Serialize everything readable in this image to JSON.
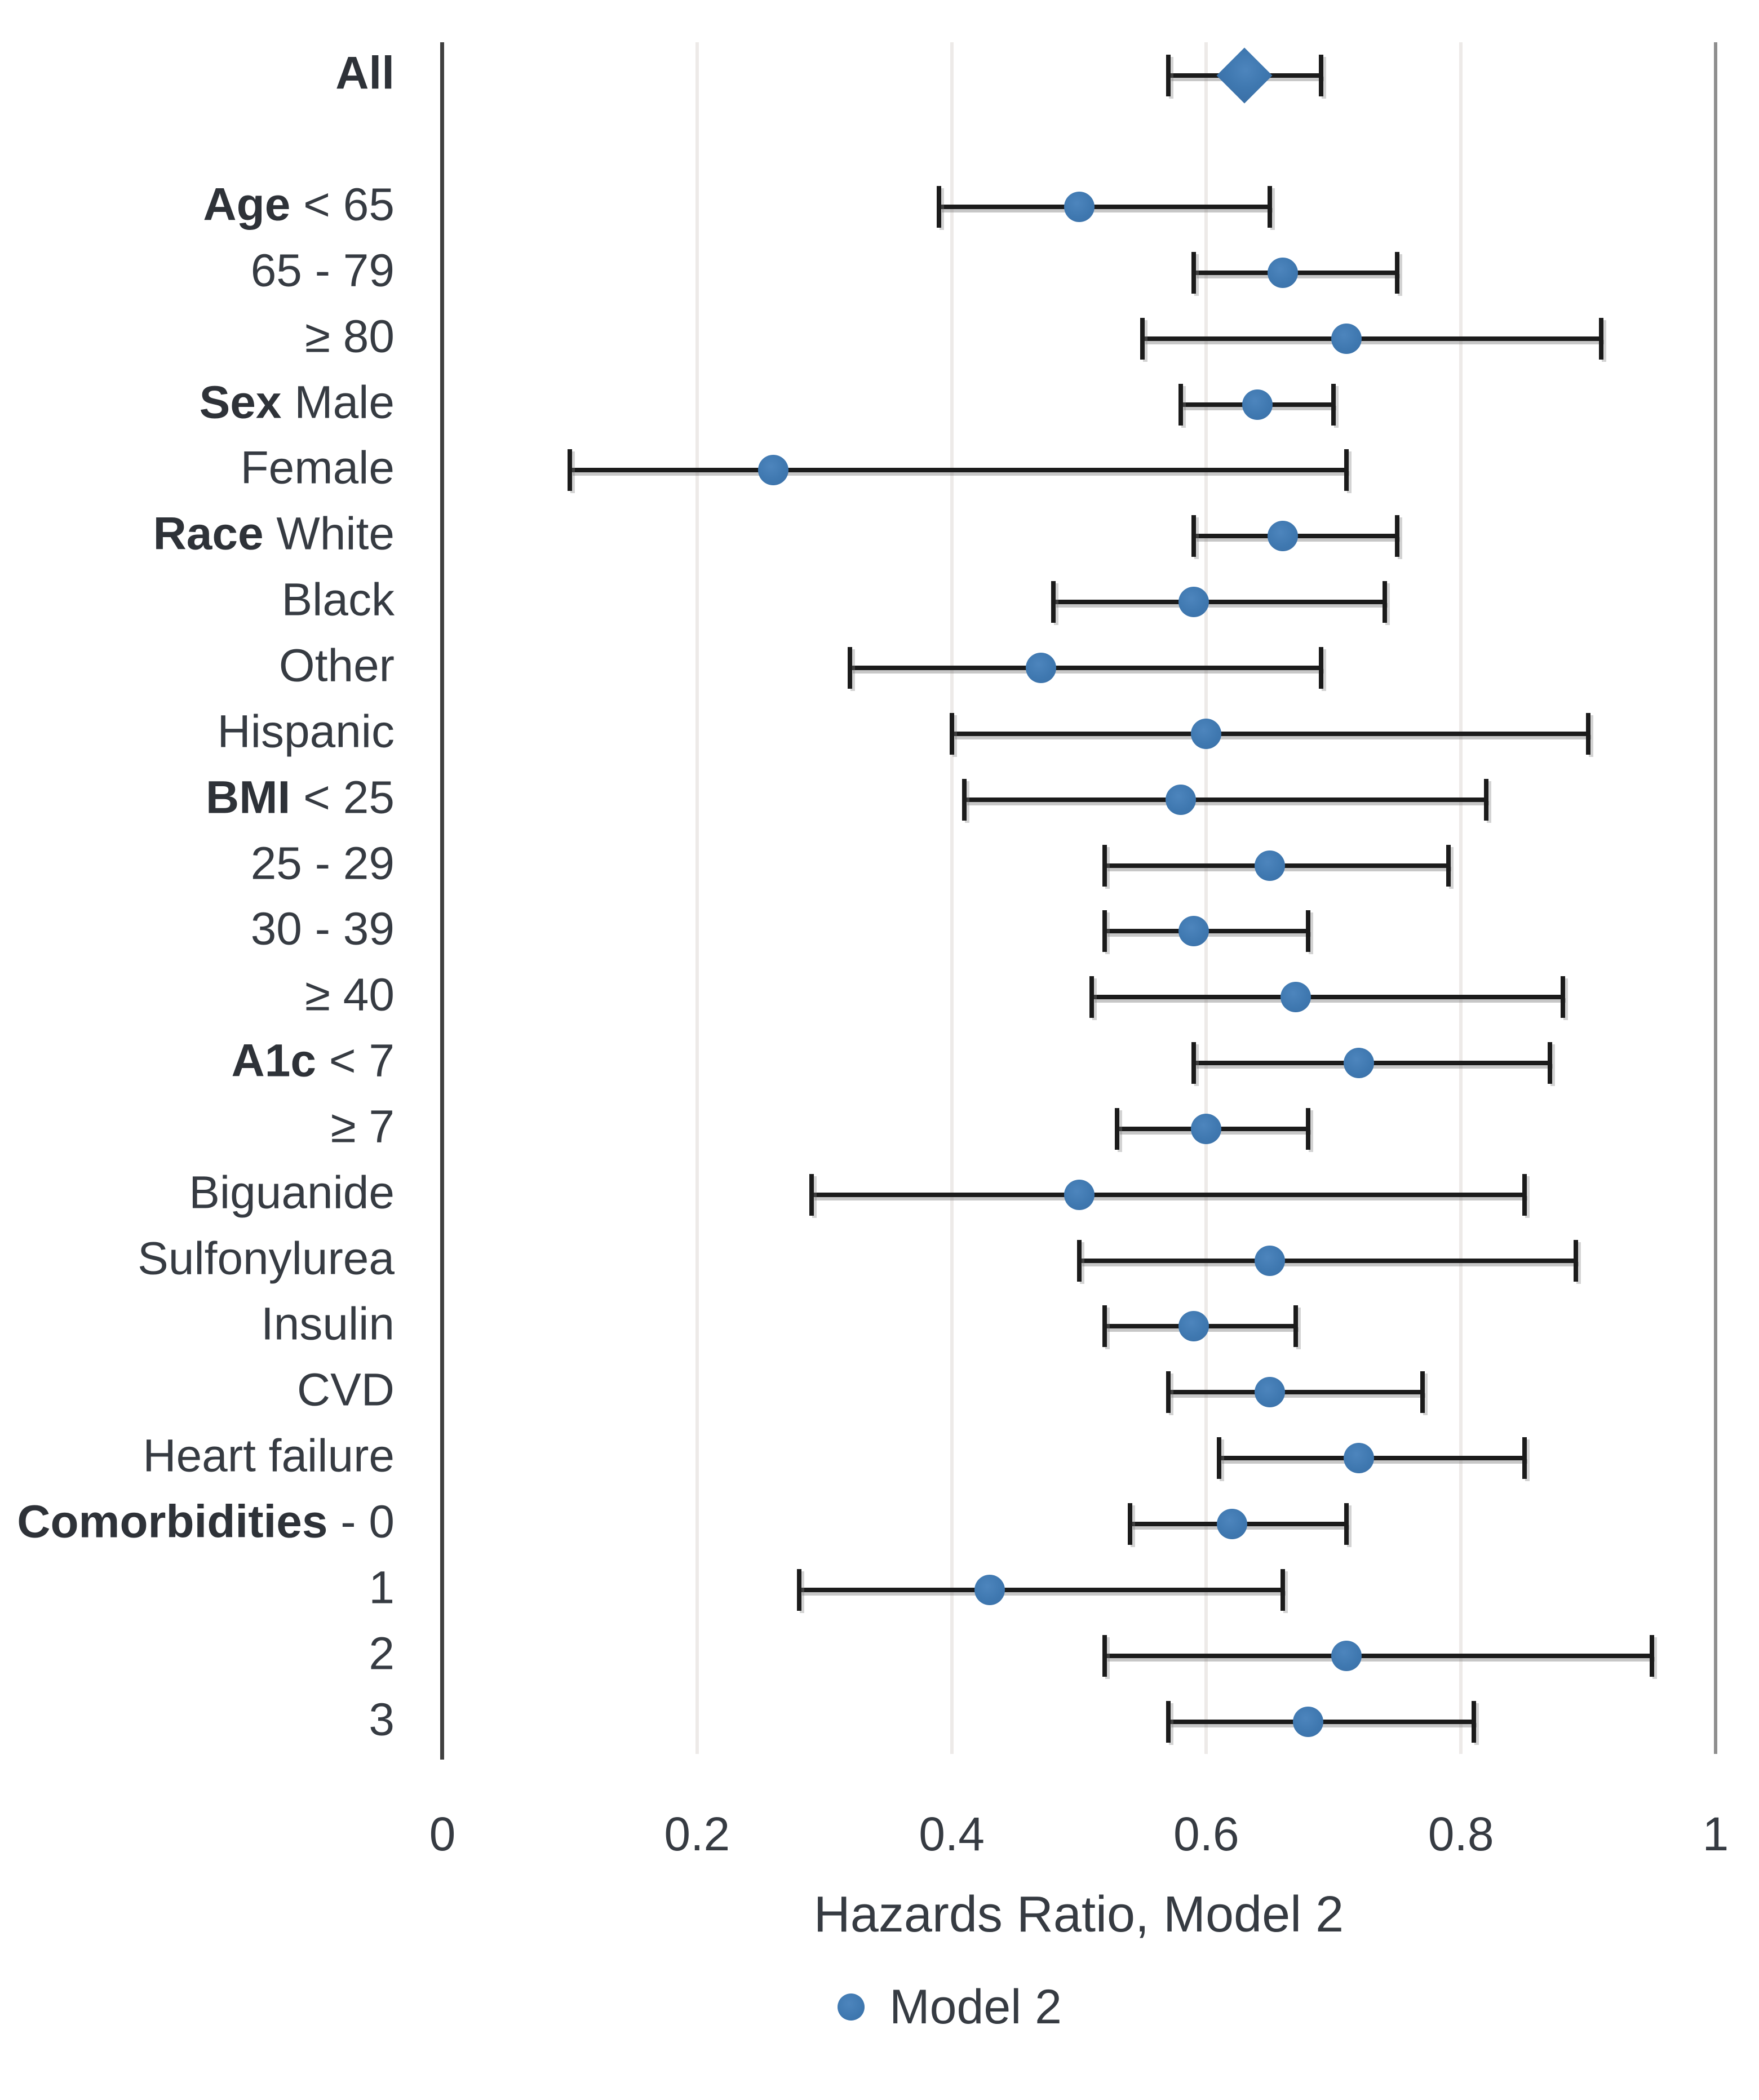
{
  "chart_data": {
    "type": "forest-plot",
    "title": "",
    "xlabel": "Hazards Ratio, Model 2",
    "xlim": [
      0,
      1
    ],
    "xticks": [
      0,
      0.2,
      0.4,
      0.6,
      0.8,
      1
    ],
    "xtick_labels": [
      "0",
      "0.2",
      "0.4",
      "0.6",
      "0.8",
      "1"
    ],
    "grid": true,
    "legend": {
      "position": "bottom",
      "entries": [
        {
          "label": "Model 2",
          "marker": "circle",
          "color": "#3f78b0"
        }
      ]
    },
    "rows": [
      {
        "label_bold": "All",
        "label_rest": "",
        "marker": "diamond",
        "value": 0.63,
        "ci_low": 0.57,
        "ci_high": 0.69
      },
      {
        "label_bold": "Age",
        "label_rest": " < 65",
        "marker": "circle",
        "value": 0.5,
        "ci_low": 0.39,
        "ci_high": 0.65
      },
      {
        "label_bold": "",
        "label_rest": "65 - 79",
        "marker": "circle",
        "value": 0.66,
        "ci_low": 0.59,
        "ci_high": 0.75
      },
      {
        "label_bold": "",
        "label_rest": "≥ 80",
        "marker": "circle",
        "value": 0.71,
        "ci_low": 0.55,
        "ci_high": 0.91
      },
      {
        "label_bold": "Sex",
        "label_rest": " Male",
        "marker": "circle",
        "value": 0.64,
        "ci_low": 0.58,
        "ci_high": 0.7
      },
      {
        "label_bold": "",
        "label_rest": "Female",
        "marker": "circle",
        "value": 0.26,
        "ci_low": 0.1,
        "ci_high": 0.71
      },
      {
        "label_bold": "Race",
        "label_rest": " White",
        "marker": "circle",
        "value": 0.66,
        "ci_low": 0.59,
        "ci_high": 0.75
      },
      {
        "label_bold": "",
        "label_rest": "Black",
        "marker": "circle",
        "value": 0.59,
        "ci_low": 0.48,
        "ci_high": 0.74
      },
      {
        "label_bold": "",
        "label_rest": "Other",
        "marker": "circle",
        "value": 0.47,
        "ci_low": 0.32,
        "ci_high": 0.69
      },
      {
        "label_bold": "",
        "label_rest": "Hispanic",
        "marker": "circle",
        "value": 0.6,
        "ci_low": 0.4,
        "ci_high": 0.9
      },
      {
        "label_bold": "BMI",
        "label_rest": " < 25",
        "marker": "circle",
        "value": 0.58,
        "ci_low": 0.41,
        "ci_high": 0.82
      },
      {
        "label_bold": "",
        "label_rest": "25 - 29",
        "marker": "circle",
        "value": 0.65,
        "ci_low": 0.52,
        "ci_high": 0.79
      },
      {
        "label_bold": "",
        "label_rest": "30 - 39",
        "marker": "circle",
        "value": 0.59,
        "ci_low": 0.52,
        "ci_high": 0.68
      },
      {
        "label_bold": "",
        "label_rest": "≥ 40",
        "marker": "circle",
        "value": 0.67,
        "ci_low": 0.51,
        "ci_high": 0.88
      },
      {
        "label_bold": "A1c",
        "label_rest": " < 7",
        "marker": "circle",
        "value": 0.72,
        "ci_low": 0.59,
        "ci_high": 0.87
      },
      {
        "label_bold": "",
        "label_rest": "≥ 7",
        "marker": "circle",
        "value": 0.6,
        "ci_low": 0.53,
        "ci_high": 0.68
      },
      {
        "label_bold": "",
        "label_rest": "Biguanide",
        "marker": "circle",
        "value": 0.5,
        "ci_low": 0.29,
        "ci_high": 0.85
      },
      {
        "label_bold": "",
        "label_rest": "Sulfonylurea",
        "marker": "circle",
        "value": 0.65,
        "ci_low": 0.5,
        "ci_high": 0.89
      },
      {
        "label_bold": "",
        "label_rest": "Insulin",
        "marker": "circle",
        "value": 0.59,
        "ci_low": 0.52,
        "ci_high": 0.67
      },
      {
        "label_bold": "",
        "label_rest": "CVD",
        "marker": "circle",
        "value": 0.65,
        "ci_low": 0.57,
        "ci_high": 0.77
      },
      {
        "label_bold": "",
        "label_rest": "Heart failure",
        "marker": "circle",
        "value": 0.72,
        "ci_low": 0.61,
        "ci_high": 0.85
      },
      {
        "label_bold": "Comorbidities",
        "label_rest": " - 0",
        "marker": "circle",
        "value": 0.62,
        "ci_low": 0.54,
        "ci_high": 0.71
      },
      {
        "label_bold": "",
        "label_rest": "1",
        "marker": "circle",
        "value": 0.43,
        "ci_low": 0.28,
        "ci_high": 0.66
      },
      {
        "label_bold": "",
        "label_rest": "2",
        "marker": "circle",
        "value": 0.71,
        "ci_low": 0.52,
        "ci_high": 0.95
      },
      {
        "label_bold": "",
        "label_rest": "3",
        "marker": "circle",
        "value": 0.68,
        "ci_low": 0.57,
        "ci_high": 0.81
      }
    ]
  },
  "colors": {
    "marker_blue": "#3f78b0",
    "error_bar": "#1b1b1b",
    "gridline": "#edeae8",
    "right_boundary": "#8f8f8f",
    "axis_line": "#404040",
    "text": "#363b42"
  }
}
